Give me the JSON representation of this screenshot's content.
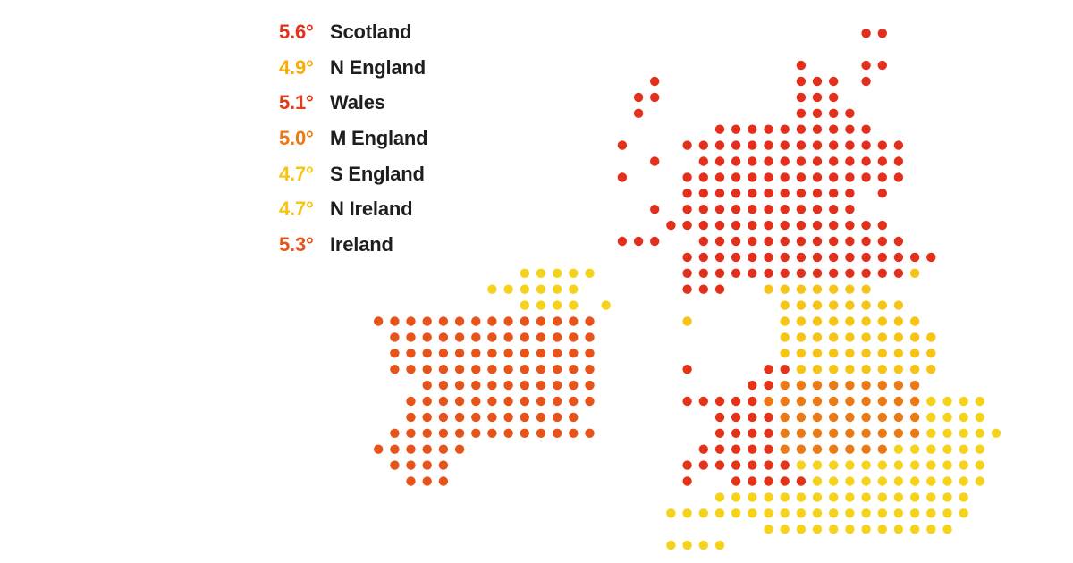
{
  "legend": [
    {
      "value": "5.6°",
      "region": "Scotland",
      "color": "#e53119"
    },
    {
      "value": "4.9°",
      "region": "N England",
      "color": "#f5ad0b"
    },
    {
      "value": "5.1°",
      "region": "Wales",
      "color": "#e33a18"
    },
    {
      "value": "5.0°",
      "region": "M England",
      "color": "#ec7913"
    },
    {
      "value": "4.7°",
      "region": "S England",
      "color": "#f6c414"
    },
    {
      "value": "4.7°",
      "region": "N Ireland",
      "color": "#f6c414"
    },
    {
      "value": "5.3°",
      "region": "Ireland",
      "color": "#e6541a"
    }
  ],
  "dot_colors": {
    "S": "#e3301c",
    "N": "#f6c416",
    "W": "#e3341a",
    "M": "#ec7a14",
    "E": "#f5d31c",
    "I": "#f5d31c",
    "R": "#e6541a"
  },
  "grid": [
    "...........................................",
    "...........................................",
    "...........................................",
    "...............................SS..........",
    "...........................................",
    "...........................S...SS..........",
    "..................S........SSS.S...........",
    ".................SS........SSS.............",
    ".................S.........SSSS............",
    "......................SSSSSSSSSS...........",
    "................S...SSSSSSSSSSSSSS.........",
    "..................S..SSSSSSSSSSSSS.........",
    "................S...SSSSSSSSSSSSSS.........",
    "....................SSSSSSSSSSS.S..........",
    "....................SSSSSSSSSSS............",
    "...........................................",
    "..................SSSSSSSSSSSSSS...........",
    "..........................................."
  ]
}
